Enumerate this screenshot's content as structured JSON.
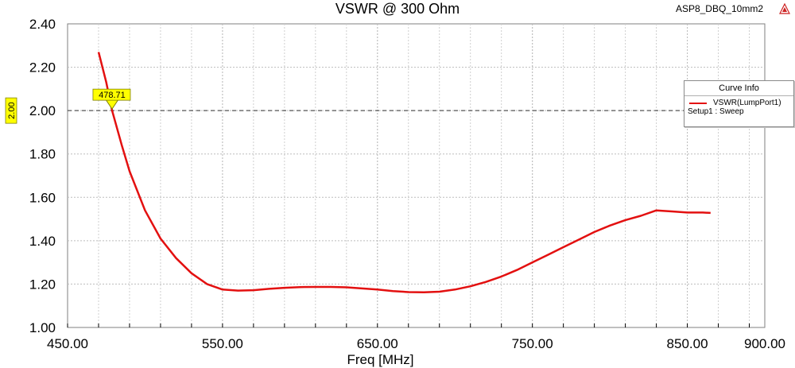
{
  "header": {
    "title": "VSWR @ 300 Ohm",
    "project": "ASP8_DBQ_10mm2"
  },
  "legend": {
    "header": "Curve Info",
    "series_label": "VSWR(LumpPort1)",
    "setup": "Setup1 : Sweep"
  },
  "marker": {
    "label": "478.71",
    "x": 478.71,
    "y": 2.0
  },
  "hline": {
    "label": "2.00",
    "y": 2.0
  },
  "chart_data": {
    "type": "line",
    "title": "VSWR @ 300 Ohm",
    "xlabel": "Freq [MHz]",
    "ylabel": "",
    "xlim": [
      450,
      900
    ],
    "ylim": [
      1.0,
      2.4
    ],
    "xticks": [
      450,
      550,
      650,
      750,
      850,
      900
    ],
    "xtick_labels": [
      "450.00",
      "550.00",
      "650.00",
      "750.00",
      "850.00",
      "900.00"
    ],
    "yticks": [
      1.0,
      1.2,
      1.4,
      1.6,
      1.8,
      2.0,
      2.2,
      2.4
    ],
    "ytick_labels": [
      "1.00",
      "1.20",
      "1.40",
      "1.60",
      "1.80",
      "2.00",
      "2.20",
      "2.40"
    ],
    "grid": true,
    "legend_position": "top-right",
    "series": [
      {
        "name": "VSWR(LumpPort1)",
        "color": "#e31010",
        "x": [
          470,
          475,
          478.71,
          485,
          490,
          500,
          510,
          520,
          530,
          540,
          550,
          560,
          570,
          580,
          590,
          600,
          610,
          620,
          630,
          640,
          650,
          660,
          670,
          680,
          690,
          700,
          710,
          720,
          730,
          740,
          750,
          760,
          770,
          780,
          790,
          800,
          810,
          820,
          830,
          840,
          850,
          860,
          865
        ],
        "y": [
          2.27,
          2.13,
          2.0,
          1.84,
          1.72,
          1.54,
          1.41,
          1.32,
          1.25,
          1.2,
          1.175,
          1.17,
          1.172,
          1.178,
          1.183,
          1.186,
          1.187,
          1.187,
          1.185,
          1.18,
          1.175,
          1.168,
          1.163,
          1.162,
          1.165,
          1.175,
          1.19,
          1.21,
          1.235,
          1.265,
          1.3,
          1.335,
          1.37,
          1.405,
          1.44,
          1.47,
          1.495,
          1.515,
          1.54,
          1.535,
          1.53,
          1.53,
          1.528
        ]
      }
    ]
  }
}
